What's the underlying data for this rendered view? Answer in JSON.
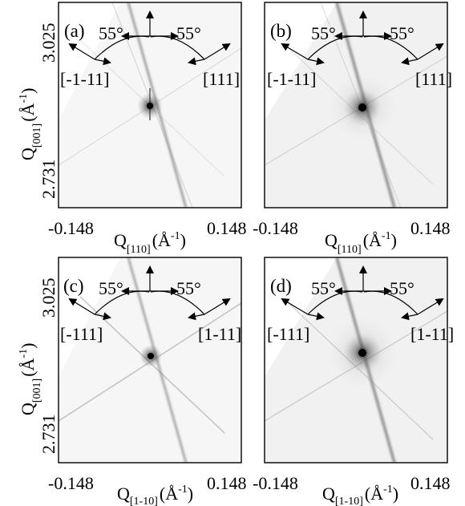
{
  "figure": {
    "panels": [
      {
        "label": "(a)",
        "angle_left": "55°",
        "angle_right": "55°",
        "dir_left": "[-1-11]",
        "dir_right": "[111]",
        "yticks": [
          "3.025",
          "2.731"
        ],
        "xticks": [
          "-0.148",
          "0.148"
        ],
        "xlabel": {
          "main": "Q",
          "sub": "[110]",
          "unit_open": "(Å",
          "unit_sup": "-1",
          "unit_close": ")"
        }
      },
      {
        "label": "(b)",
        "angle_left": "55°",
        "angle_right": "55°",
        "dir_left": "[-1-11]",
        "dir_right": "[111]",
        "yticks": [
          "",
          ""
        ],
        "xticks": [
          "-0.148",
          "0.148"
        ],
        "xlabel": {
          "main": "Q",
          "sub": "[110]",
          "unit_open": "(Å",
          "unit_sup": "-1",
          "unit_close": ")"
        }
      },
      {
        "label": "(c)",
        "angle_left": "55°",
        "angle_right": "55°",
        "dir_left": "[-111]",
        "dir_right": "[1-11]",
        "yticks": [
          "3.025",
          "2.731"
        ],
        "xticks": [
          "-0.148",
          "0.148"
        ],
        "xlabel": {
          "main": "Q",
          "sub": "[1-10]",
          "unit_open": "(Å",
          "unit_sup": "-1",
          "unit_close": ")"
        }
      },
      {
        "label": "(d)",
        "angle_left": "55°",
        "angle_right": "55°",
        "dir_left": "[-111]",
        "dir_right": "[1-11]",
        "yticks": [
          "",
          ""
        ],
        "xticks": [
          "-0.148",
          "0.148"
        ],
        "xlabel": {
          "main": "Q",
          "sub": "[1-10]",
          "unit_open": "(Å",
          "unit_sup": "-1",
          "unit_close": ")"
        }
      }
    ],
    "ylabel": {
      "main": "Q",
      "sub": "[001]",
      "unit_open": "(Å",
      "unit_sup": "-1",
      "unit_close": ")"
    }
  }
}
